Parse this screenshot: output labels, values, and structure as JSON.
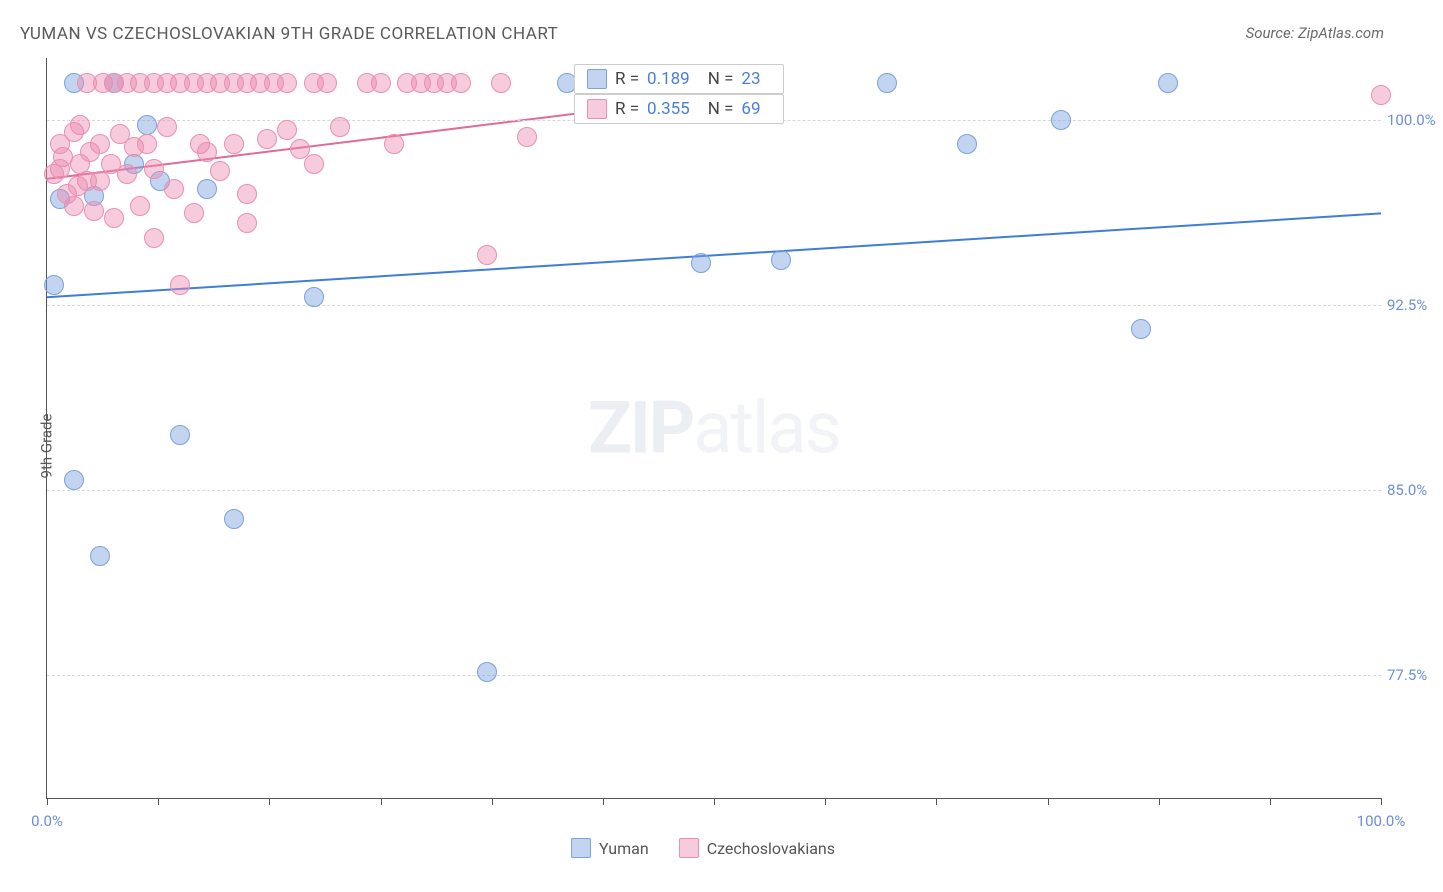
{
  "title": "YUMAN VS CZECHOSLOVAKIAN 9TH GRADE CORRELATION CHART",
  "source": "Source: ZipAtlas.com",
  "y_axis_label": "9th Grade",
  "watermark_bold": "ZIP",
  "watermark_light": "atlas",
  "chart": {
    "type": "scatter",
    "xlim": [
      0,
      100
    ],
    "ylim": [
      72.5,
      102.5
    ],
    "x_ticks": [
      0,
      8.33,
      16.67,
      25,
      33.33,
      41.67,
      50,
      58.33,
      66.67,
      75,
      83.33,
      91.67,
      100
    ],
    "x_tick_labels": {
      "0": "0.0%",
      "100": "100.0%"
    },
    "y_ticks": [
      77.5,
      85.0,
      92.5,
      100.0
    ],
    "y_tick_labels": [
      "77.5%",
      "85.0%",
      "92.5%",
      "100.0%"
    ],
    "marker_radius": 9,
    "marker_opacity": 0.45,
    "line_width": 2,
    "grid_color": "#d8d8d8",
    "background_color": "#ffffff",
    "series": [
      {
        "name": "Yuman",
        "color_fill": "rgba(120,160,220,0.45)",
        "color_stroke": "#7aa3de",
        "trend_color": "#3f7ed6",
        "R": "0.189",
        "N": "23",
        "trend": {
          "x1": 0,
          "y1": 92.8,
          "x2": 100,
          "y2": 96.2
        },
        "points": [
          [
            5,
            101.5
          ],
          [
            0.5,
            93.3
          ],
          [
            2,
            85.4
          ],
          [
            4,
            82.3
          ],
          [
            10,
            87.2
          ],
          [
            12,
            97.2
          ],
          [
            14,
            83.8
          ],
          [
            20,
            92.8
          ],
          [
            33,
            77.6
          ],
          [
            39,
            101.5
          ],
          [
            49,
            94.2
          ],
          [
            55,
            94.3
          ],
          [
            63,
            101.5
          ],
          [
            69,
            99.0
          ],
          [
            76,
            100.0
          ],
          [
            82,
            91.5
          ],
          [
            84,
            101.5
          ],
          [
            3.5,
            96.9
          ],
          [
            1,
            96.8
          ],
          [
            2,
            101.5
          ],
          [
            6.5,
            98.2
          ],
          [
            7.5,
            99.8
          ],
          [
            8.5,
            97.5
          ]
        ]
      },
      {
        "name": "Czechoslovakians",
        "color_fill": "rgba(235,140,175,0.45)",
        "color_stroke": "#ec8fb3",
        "trend_color": "#e06a9a",
        "R": "0.355",
        "N": "69",
        "trend": {
          "x1": 0,
          "y1": 97.6,
          "x2": 48,
          "y2": 100.8
        },
        "points": [
          [
            0.5,
            97.8
          ],
          [
            1,
            98.0
          ],
          [
            1,
            99.0
          ],
          [
            1.5,
            97.0
          ],
          [
            1.2,
            98.5
          ],
          [
            2,
            99.5
          ],
          [
            2,
            96.5
          ],
          [
            2.5,
            98.2
          ],
          [
            2.3,
            97.3
          ],
          [
            2.5,
            99.8
          ],
          [
            3,
            101.5
          ],
          [
            3,
            97.5
          ],
          [
            3.2,
            98.7
          ],
          [
            3.5,
            96.3
          ],
          [
            4,
            97.5
          ],
          [
            4,
            99.0
          ],
          [
            4.2,
            101.5
          ],
          [
            4.8,
            98.2
          ],
          [
            5,
            96.0
          ],
          [
            5,
            101.5
          ],
          [
            5.5,
            99.4
          ],
          [
            6,
            101.5
          ],
          [
            6,
            97.8
          ],
          [
            6.5,
            98.9
          ],
          [
            7,
            101.5
          ],
          [
            7,
            96.5
          ],
          [
            7.5,
            99.0
          ],
          [
            8,
            101.5
          ],
          [
            8,
            98.0
          ],
          [
            8,
            95.2
          ],
          [
            9,
            101.5
          ],
          [
            9,
            99.7
          ],
          [
            9.5,
            97.2
          ],
          [
            10,
            101.5
          ],
          [
            10,
            93.3
          ],
          [
            11,
            101.5
          ],
          [
            11,
            96.2
          ],
          [
            11.5,
            99.0
          ],
          [
            12,
            101.5
          ],
          [
            12,
            98.7
          ],
          [
            13,
            101.5
          ],
          [
            13,
            97.9
          ],
          [
            14,
            101.5
          ],
          [
            14,
            99.0
          ],
          [
            15,
            101.5
          ],
          [
            15,
            97.0
          ],
          [
            15,
            95.8
          ],
          [
            16,
            101.5
          ],
          [
            16.5,
            99.2
          ],
          [
            17,
            101.5
          ],
          [
            18,
            101.5
          ],
          [
            18,
            99.6
          ],
          [
            19,
            98.8
          ],
          [
            20,
            101.5
          ],
          [
            20,
            98.2
          ],
          [
            21,
            101.5
          ],
          [
            22,
            99.7
          ],
          [
            24,
            101.5
          ],
          [
            25,
            101.5
          ],
          [
            26,
            99.0
          ],
          [
            27,
            101.5
          ],
          [
            28,
            101.5
          ],
          [
            29,
            101.5
          ],
          [
            30,
            101.5
          ],
          [
            31,
            101.5
          ],
          [
            33,
            94.5
          ],
          [
            34,
            101.5
          ],
          [
            36,
            99.3
          ],
          [
            100,
            101.0
          ]
        ]
      }
    ]
  },
  "legend_stats": {
    "r_label": "R =",
    "n_label": "N ="
  },
  "bottom_legend": [
    {
      "label": "Yuman",
      "fill": "rgba(120,160,220,0.45)",
      "stroke": "#7aa3de"
    },
    {
      "label": "Czechoslovakians",
      "fill": "rgba(235,140,175,0.45)",
      "stroke": "#ec8fb3"
    }
  ]
}
